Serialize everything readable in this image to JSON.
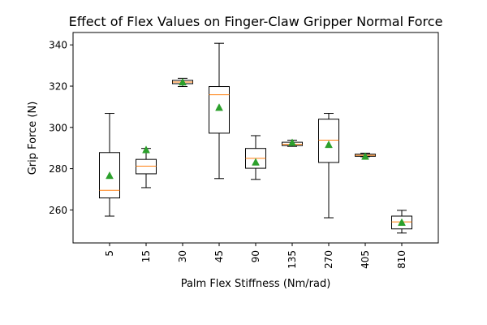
{
  "chart_data": {
    "type": "box",
    "title": "Effect of Flex Values on Finger-Claw Gripper Normal Force",
    "xlabel": "Palm Flex Stiffness (Nm/rad)",
    "ylabel": "Grip Force (N)",
    "ylim": [
      244,
      346
    ],
    "yticks": [
      260,
      280,
      300,
      320,
      340
    ],
    "categories": [
      "5",
      "15",
      "30",
      "45",
      "90",
      "135",
      "270",
      "405",
      "810"
    ],
    "boxes": [
      {
        "category": "5",
        "whisker_low": 257.0,
        "q1": 265.8,
        "median": 269.5,
        "q3": 287.8,
        "whisker_high": 306.8,
        "mean": 276.5
      },
      {
        "category": "15",
        "whisker_low": 270.8,
        "q1": 277.5,
        "median": 281.2,
        "q3": 284.5,
        "whisker_high": 289.8,
        "mean": 289.0
      },
      {
        "category": "30",
        "whisker_low": 319.8,
        "q1": 321.2,
        "median": 322.0,
        "q3": 322.8,
        "whisker_high": 323.8,
        "mean": 321.8
      },
      {
        "category": "45",
        "whisker_low": 275.2,
        "q1": 297.2,
        "median": 315.8,
        "q3": 319.8,
        "whisker_high": 340.8,
        "mean": 309.5
      },
      {
        "category": "90",
        "whisker_low": 274.8,
        "q1": 280.2,
        "median": 285.0,
        "q3": 289.8,
        "whisker_high": 296.0,
        "mean": 283.0
      },
      {
        "category": "135",
        "whisker_low": 290.8,
        "q1": 291.2,
        "median": 291.8,
        "q3": 292.8,
        "whisker_high": 293.8,
        "mean": 292.5
      },
      {
        "category": "270",
        "whisker_low": 256.2,
        "q1": 283.0,
        "median": 293.8,
        "q3": 304.0,
        "whisker_high": 306.8,
        "mean": 291.5
      },
      {
        "category": "405",
        "whisker_low": 285.8,
        "q1": 286.0,
        "median": 286.5,
        "q3": 287.0,
        "whisker_high": 287.5,
        "mean": 285.8
      },
      {
        "category": "810",
        "whisker_low": 248.8,
        "q1": 250.8,
        "median": 254.2,
        "q3": 257.0,
        "whisker_high": 259.8,
        "mean": 253.8
      }
    ],
    "grid": false,
    "legend": "none",
    "colors": {
      "box": "#000000",
      "median": "#ff7f0e",
      "mean_marker": "#2ca02c"
    }
  }
}
